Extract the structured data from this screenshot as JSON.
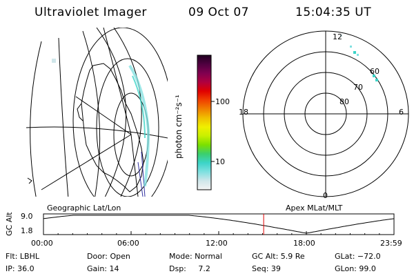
{
  "header": {
    "title": "Ultraviolet Imager",
    "date": "09 Oct 07",
    "time": "15:04:35 UT"
  },
  "colorbar": {
    "unit_label": "photon cm⁻²s⁻¹",
    "tick_100": "100",
    "tick_10": "10",
    "stops": [
      "#f4f4f4",
      "#cfe6ea",
      "#7fe0e0",
      "#3cd4c8",
      "#3bcf6e",
      "#7be000",
      "#c8f000",
      "#f0f000",
      "#f0c000",
      "#f08000",
      "#f04000",
      "#e00000",
      "#b00040",
      "#800050",
      "#500040",
      "#200020"
    ]
  },
  "labels": {
    "geographic": "Geographic Lat/Lon",
    "apex": "Apex MLat/MLT"
  },
  "polar": {
    "mlt_12": "12",
    "mlt_18": "18",
    "mlt_6": "6",
    "mlt_0": "0",
    "lat_60": "60",
    "lat_70": "70",
    "lat_80": "80"
  },
  "timeline": {
    "ylabel": "GC Alt",
    "y_top": "9.0",
    "y_bottom": "1.8",
    "ticks": [
      "00:00",
      "06:00",
      "12:00",
      "18:00",
      "23:59"
    ],
    "cursor_time": "15:04:35",
    "cursor_color": "#e00000"
  },
  "info": {
    "flt": "Flt: LBHL",
    "ip": "IP: 36.0",
    "door": "Door: Open",
    "gain": "Gain: 14",
    "mode": "Mode: Normal",
    "dsp": "Dsp:     7.2",
    "gcalt": "GC Alt: 5.9 Re",
    "seq": "Seq: 39",
    "glat": "GLat: −72.0",
    "glon": "GLon: 99.0"
  }
}
